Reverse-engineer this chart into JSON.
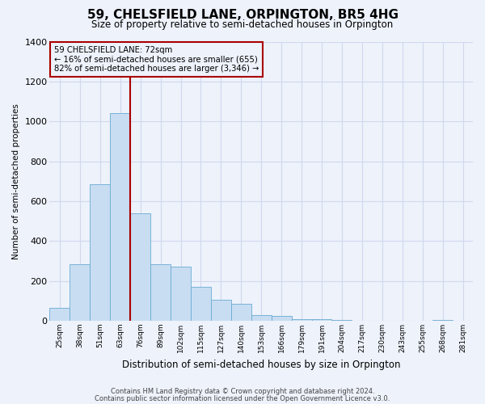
{
  "title": "59, CHELSFIELD LANE, ORPINGTON, BR5 4HG",
  "subtitle": "Size of property relative to semi-detached houses in Orpington",
  "xlabel": "Distribution of semi-detached houses by size in Orpington",
  "ylabel": "Number of semi-detached properties",
  "footer1": "Contains HM Land Registry data © Crown copyright and database right 2024.",
  "footer2": "Contains public sector information licensed under the Open Government Licence v3.0.",
  "annotation_line1": "59 CHELSFIELD LANE: 72sqm",
  "annotation_line2": "← 16% of semi-detached houses are smaller (655)",
  "annotation_line3": "82% of semi-detached houses are larger (3,346) →",
  "bar_color": "#c8ddf2",
  "bar_edge_color": "#6aabd2",
  "redline_color": "#aa0000",
  "categories": [
    "25sqm",
    "38sqm",
    "51sqm",
    "63sqm",
    "76sqm",
    "89sqm",
    "102sqm",
    "115sqm",
    "127sqm",
    "140sqm",
    "153sqm",
    "166sqm",
    "179sqm",
    "191sqm",
    "204sqm",
    "217sqm",
    "230sqm",
    "243sqm",
    "255sqm",
    "268sqm",
    "281sqm"
  ],
  "values": [
    65,
    285,
    685,
    1040,
    540,
    285,
    270,
    170,
    105,
    85,
    30,
    25,
    10,
    10,
    3,
    0,
    0,
    0,
    0,
    3,
    0
  ],
  "ylim_max": 1400,
  "yticks": [
    0,
    200,
    400,
    600,
    800,
    1000,
    1200,
    1400
  ],
  "redline_bin_index": 4,
  "background_color": "#edf2fb",
  "grid_color": "#d0d8ec",
  "ann_box_bg": "#edf2fb",
  "ann_box_edge": "#aa0000"
}
